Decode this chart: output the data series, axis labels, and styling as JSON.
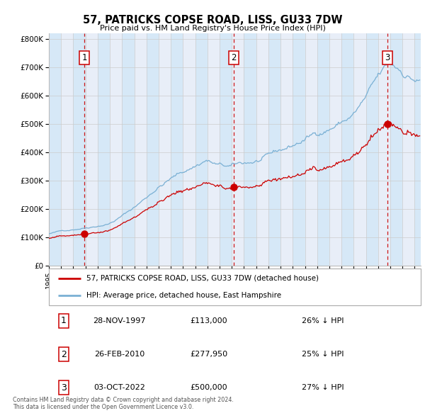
{
  "title": "57, PATRICKS COPSE ROAD, LISS, GU33 7DW",
  "subtitle": "Price paid vs. HM Land Registry's House Price Index (HPI)",
  "sale_dates_str": [
    "28-NOV-1997",
    "26-FEB-2010",
    "03-OCT-2022"
  ],
  "sale_prices_str": [
    "£113,000",
    "£277,950",
    "£500,000"
  ],
  "sale_hpi_str": [
    "26% ↓ HPI",
    "25% ↓ HPI",
    "27% ↓ HPI"
  ],
  "legend_property": "57, PATRICKS COPSE ROAD, LISS, GU33 7DW (detached house)",
  "legend_hpi": "HPI: Average price, detached house, East Hampshire",
  "color_property": "#cc0000",
  "color_hpi": "#7ab0d4",
  "color_vline": "#cc0000",
  "color_grid": "#cccccc",
  "color_bg_even": "#d6e8f7",
  "color_bg_odd": "#e8eef8",
  "footer": "Contains HM Land Registry data © Crown copyright and database right 2024.\nThis data is licensed under the Open Government Licence v3.0.",
  "ylim": [
    0,
    820000
  ],
  "yticks": [
    0,
    100000,
    200000,
    300000,
    400000,
    500000,
    600000,
    700000,
    800000
  ],
  "ytick_labels": [
    "£0",
    "£100K",
    "£200K",
    "£300K",
    "£400K",
    "£500K",
    "£600K",
    "£700K",
    "£800K"
  ]
}
